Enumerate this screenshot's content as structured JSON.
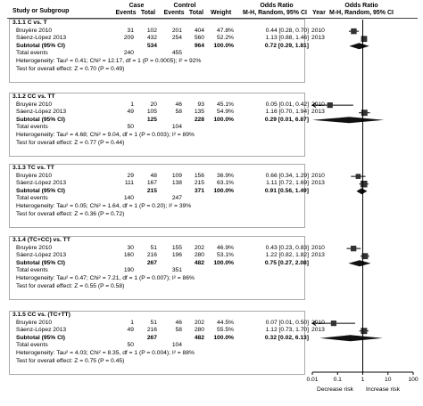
{
  "headers": {
    "study": "Study or Subgroup",
    "case": "Case",
    "control": "Control",
    "events": "Events",
    "total": "Total",
    "weight": "Weight",
    "or_numeric": "Odds Ratio",
    "or_numeric_sub": "M-H, Random, 95% CI",
    "year": "Year",
    "or_plot": "Odds Ratio",
    "or_plot_sub": "M-H, Random, 95% CI"
  },
  "chart_data": {
    "type": "forest",
    "x_scale": "log",
    "x_ticks": [
      "0.01",
      "0.1",
      "1",
      "10",
      "100"
    ],
    "x_tick_values": [
      0.01,
      0.1,
      1,
      10,
      100
    ],
    "xlim": [
      0.01,
      100
    ],
    "footer_left": "Decrease risk",
    "footer_right": "Increase risk",
    "subgroups": [
      {
        "title": "3.1.1 C vs. T",
        "studies": [
          {
            "name": "Bruyère 2010",
            "ce": "31",
            "ct": "102",
            "ke": "201",
            "kt": "404",
            "w": "47.8%",
            "ci": "0.44 [0.28, 0.70]",
            "yr": "2010",
            "or": 0.44,
            "lo": 0.28,
            "hi": 0.7
          },
          {
            "name": "Sáenz-López 2013",
            "ce": "209",
            "ct": "432",
            "ke": "254",
            "kt": "560",
            "w": "52.2%",
            "ci": "1.13 [0.88, 1.46]",
            "yr": "2013",
            "or": 1.13,
            "lo": 0.88,
            "hi": 1.46
          }
        ],
        "subtotal": {
          "label": "Subtotal (95% CI)",
          "ct": "534",
          "kt": "964",
          "w": "100.0%",
          "ci": "0.72 [0.29, 1.81]",
          "or": 0.72,
          "lo": 0.29,
          "hi": 1.81
        },
        "total_events": {
          "label": "Total events",
          "case": "240",
          "control": "455"
        },
        "heterogeneity": "Heterogeneity: Tau² = 0.41; Chi² = 12.17, df = 1 (P = 0.0005); I² = 92%",
        "overall": "Test for overall effect: Z = 0.70 (P = 0.49)"
      },
      {
        "title": "3.1.2 CC vs. TT",
        "studies": [
          {
            "name": "Bruyère 2010",
            "ce": "1",
            "ct": "20",
            "ke": "46",
            "kt": "93",
            "w": "45.1%",
            "ci": "0.05 [0.01, 0.42]",
            "yr": "2010",
            "or": 0.05,
            "lo": 0.01,
            "hi": 0.42
          },
          {
            "name": "Sáenz-López 2013",
            "ce": "49",
            "ct": "105",
            "ke": "58",
            "kt": "135",
            "w": "54.9%",
            "ci": "1.16 [0.70, 1.94]",
            "yr": "2013",
            "or": 1.16,
            "lo": 0.7,
            "hi": 1.94
          }
        ],
        "subtotal": {
          "label": "Subtotal (95% CI)",
          "ct": "125",
          "kt": "228",
          "w": "100.0%",
          "ci": "0.29 [0.01, 6.87]",
          "or": 0.29,
          "lo": 0.01,
          "hi": 6.87
        },
        "total_events": {
          "label": "Total events",
          "case": "50",
          "control": "104"
        },
        "heterogeneity": "Heterogeneity: Tau² = 4.68; Chi² = 9.04, df = 1 (P = 0.003); I² = 89%",
        "overall": "Test for overall effect: Z = 0.77 (P = 0.44)"
      },
      {
        "title": "3.1.3 TC vs. TT",
        "studies": [
          {
            "name": "Bruyère 2010",
            "ce": "29",
            "ct": "48",
            "ke": "109",
            "kt": "156",
            "w": "36.9%",
            "ci": "0.66 [0.34, 1.29]",
            "yr": "2010",
            "or": 0.66,
            "lo": 0.34,
            "hi": 1.29
          },
          {
            "name": "Sáenz-López 2013",
            "ce": "111",
            "ct": "167",
            "ke": "138",
            "kt": "215",
            "w": "63.1%",
            "ci": "1.11 [0.72, 1.69]",
            "yr": "2013",
            "or": 1.11,
            "lo": 0.72,
            "hi": 1.69
          }
        ],
        "subtotal": {
          "label": "Subtotal (95% CI)",
          "ct": "215",
          "kt": "371",
          "w": "100.0%",
          "ci": "0.91 [0.56, 1.49]",
          "or": 0.91,
          "lo": 0.56,
          "hi": 1.49
        },
        "total_events": {
          "label": "Total events",
          "case": "140",
          "control": "247"
        },
        "heterogeneity": "Heterogeneity: Tau² = 0.05; Chi² = 1.64, df = 1 (P = 0.20); I² = 39%",
        "overall": "Test for overall effect: Z = 0.36 (P = 0.72)"
      },
      {
        "title": "3.1.4 (TC+CC) vs. TT",
        "studies": [
          {
            "name": "Bruyère 2010",
            "ce": "30",
            "ct": "51",
            "ke": "155",
            "kt": "202",
            "w": "46.9%",
            "ci": "0.43 [0.23, 0.83]",
            "yr": "2010",
            "or": 0.43,
            "lo": 0.23,
            "hi": 0.83
          },
          {
            "name": "Sáenz-López 2013",
            "ce": "160",
            "ct": "216",
            "ke": "196",
            "kt": "280",
            "w": "53.1%",
            "ci": "1.22 [0.82, 1.82]",
            "yr": "2013",
            "or": 1.22,
            "lo": 0.82,
            "hi": 1.82
          }
        ],
        "subtotal": {
          "label": "Subtotal (95% CI)",
          "ct": "267",
          "kt": "482",
          "w": "100.0%",
          "ci": "0.75 [0.27, 2.08]",
          "or": 0.75,
          "lo": 0.27,
          "hi": 2.08
        },
        "total_events": {
          "label": "Total events",
          "case": "190",
          "control": "351"
        },
        "heterogeneity": "Heterogeneity: Tau² = 0.47; Chi² = 7.21, df = 1 (P = 0.007); I² = 86%",
        "overall": "Test for overall effect: Z = 0.55 (P = 0.58)"
      },
      {
        "title": "3.1.5 CC vs. (TC+TT)",
        "studies": [
          {
            "name": "Bruyère 2010",
            "ce": "1",
            "ct": "51",
            "ke": "46",
            "kt": "202",
            "w": "44.5%",
            "ci": "0.07 [0.01, 0.50]",
            "yr": "2010",
            "or": 0.07,
            "lo": 0.01,
            "hi": 0.5
          },
          {
            "name": "Sáenz-López 2013",
            "ce": "49",
            "ct": "216",
            "ke": "58",
            "kt": "280",
            "w": "55.5%",
            "ci": "1.12 [0.73, 1.70]",
            "yr": "2013",
            "or": 1.12,
            "lo": 0.73,
            "hi": 1.7
          }
        ],
        "subtotal": {
          "label": "Subtotal (95% CI)",
          "ct": "267",
          "kt": "482",
          "w": "100.0%",
          "ci": "0.32 [0.02, 6.13]",
          "or": 0.32,
          "lo": 0.02,
          "hi": 6.13
        },
        "total_events": {
          "label": "Total events",
          "case": "50",
          "control": "104"
        },
        "heterogeneity": "Heterogeneity: Tau² = 4.03; Chi² = 8.35, df = 1 (P = 0.004); I² = 88%",
        "overall": "Test for overall effect: Z = 0.75 (P = 0.45)"
      }
    ]
  }
}
